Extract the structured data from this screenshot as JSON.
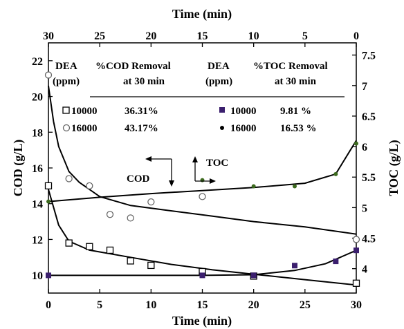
{
  "chart_data": {
    "type": "scatter",
    "axes": {
      "x_bottom": {
        "label": "Time (min)",
        "range": [
          0,
          30
        ],
        "ticks": [
          0,
          5,
          10,
          15,
          20,
          25,
          30
        ]
      },
      "x_top": {
        "label": "Time (min)",
        "reversed": true,
        "range": [
          30,
          0
        ],
        "ticks": [
          30,
          25,
          20,
          15,
          10,
          5,
          0
        ]
      },
      "y_left": {
        "label": "COD (g/L)",
        "range": [
          9,
          23
        ],
        "ticks": [
          10,
          12,
          14,
          16,
          18,
          20,
          22
        ]
      },
      "y_right": {
        "label": "TOC (g/L)",
        "range": [
          3.6,
          7.7
        ],
        "ticks": [
          "4",
          "4.5",
          "5",
          "5.5",
          "6",
          "6.5",
          "7",
          "7.5"
        ]
      }
    },
    "grid": false,
    "series": [
      {
        "name": "10000",
        "axis": "COD",
        "marker": "open-square",
        "x": [
          0,
          2,
          4,
          6,
          8,
          10,
          15,
          20,
          30
        ],
        "y": [
          15.0,
          11.8,
          11.6,
          11.4,
          10.8,
          10.55,
          10.2,
          9.95,
          9.55
        ],
        "fit": [
          [
            0,
            14.8
          ],
          [
            1,
            12.8
          ],
          [
            2,
            11.9
          ],
          [
            4,
            11.4
          ],
          [
            8,
            11.0
          ],
          [
            12,
            10.6
          ],
          [
            16,
            10.3
          ],
          [
            20,
            10.05
          ],
          [
            25,
            9.75
          ],
          [
            30,
            9.45
          ]
        ]
      },
      {
        "name": "16000",
        "axis": "COD",
        "marker": "open-circle",
        "x": [
          0,
          2,
          4,
          6,
          8,
          10,
          15,
          30
        ],
        "y": [
          21.2,
          15.4,
          15.0,
          13.4,
          13.2,
          14.1,
          14.4,
          12.0
        ],
        "fit": [
          [
            0,
            20.6
          ],
          [
            0.5,
            18.6
          ],
          [
            1,
            17.2
          ],
          [
            2,
            15.8
          ],
          [
            3,
            15.2
          ],
          [
            5,
            14.4
          ],
          [
            8,
            13.9
          ],
          [
            12,
            13.6
          ],
          [
            16,
            13.3
          ],
          [
            20,
            13.0
          ],
          [
            25,
            12.7
          ],
          [
            30,
            12.3
          ]
        ]
      },
      {
        "name": "10000",
        "axis": "TOC",
        "marker": "filled-square",
        "x": [
          0,
          15,
          20,
          24,
          28,
          30
        ],
        "y": [
          3.89,
          3.89,
          3.89,
          4.05,
          4.12,
          4.3
        ],
        "fit": [
          [
            0,
            3.89
          ],
          [
            10,
            3.89
          ],
          [
            15,
            3.89
          ],
          [
            20,
            3.9
          ],
          [
            24,
            3.97
          ],
          [
            27,
            4.08
          ],
          [
            30,
            4.3
          ]
        ]
      },
      {
        "name": "16000",
        "axis": "TOC",
        "marker": "filled-dot",
        "x": [
          0,
          15,
          20,
          24,
          28,
          30
        ],
        "y": [
          5.1,
          5.45,
          5.35,
          5.35,
          5.55,
          6.05
        ],
        "fit": [
          [
            0,
            5.1
          ],
          [
            5,
            5.17
          ],
          [
            10,
            5.23
          ],
          [
            15,
            5.28
          ],
          [
            20,
            5.33
          ],
          [
            25,
            5.4
          ],
          [
            28,
            5.55
          ],
          [
            30,
            6.1
          ]
        ]
      }
    ],
    "table": {
      "headers": [
        {
          "line1": "DEA",
          "line2": "(ppm)"
        },
        {
          "line1": "%COD Removal",
          "line2": "at 30 min"
        },
        {
          "line1": "DEA",
          "line2": "(ppm)"
        },
        {
          "line1": "%TOC Removal",
          "line2": "at 30 min"
        }
      ],
      "rows": [
        {
          "cod_dea": "10000",
          "cod_pct": "36.31%",
          "toc_dea": "10000",
          "toc_pct": "9.81 %"
        },
        {
          "cod_dea": "16000",
          "cod_pct": "43.17%",
          "toc_dea": "16000",
          "toc_pct": "16.53 %"
        }
      ]
    },
    "annotations": {
      "cod_arrow_label": "COD",
      "toc_arrow_label": "TOC"
    }
  }
}
